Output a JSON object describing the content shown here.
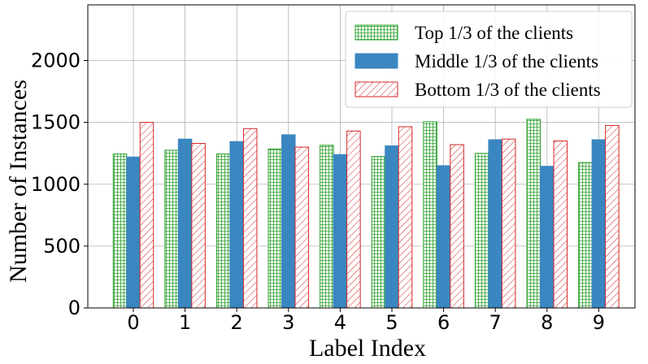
{
  "chart_data": {
    "type": "bar",
    "title": "",
    "xlabel": "Label Index",
    "ylabel": "Number of Instances",
    "categories": [
      "0",
      "1",
      "2",
      "3",
      "4",
      "5",
      "6",
      "7",
      "8",
      "9"
    ],
    "ylim": [
      0,
      2450
    ],
    "yticks": [
      0,
      500,
      1000,
      1500,
      2000
    ],
    "grid": true,
    "legend_position": "top-right",
    "series": [
      {
        "name": "Top 1/3 of the clients",
        "color": "#2ca02c",
        "pattern": "grid-hatch",
        "values": [
          1245,
          1275,
          1245,
          1285,
          1315,
          1225,
          1505,
          1250,
          1525,
          1175
        ]
      },
      {
        "name": "Middle 1/3 of the clients",
        "color": "#3a86c0",
        "pattern": "solid",
        "values": [
          1220,
          1365,
          1345,
          1400,
          1240,
          1310,
          1150,
          1360,
          1145,
          1360
        ]
      },
      {
        "name": "Bottom 1/3 of the clients",
        "color": "#d62728",
        "pattern": "diagonal-hatch",
        "values": [
          1500,
          1330,
          1450,
          1300,
          1430,
          1465,
          1320,
          1365,
          1350,
          1475
        ]
      }
    ]
  }
}
